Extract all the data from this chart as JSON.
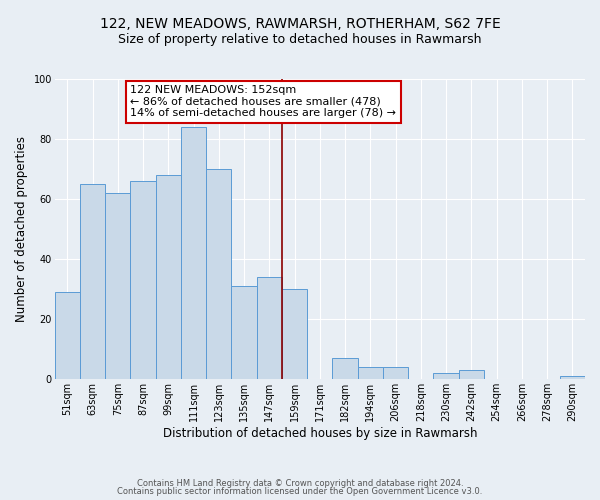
{
  "title": "122, NEW MEADOWS, RAWMARSH, ROTHERHAM, S62 7FE",
  "subtitle": "Size of property relative to detached houses in Rawmarsh",
  "xlabel": "Distribution of detached houses by size in Rawmarsh",
  "ylabel": "Number of detached properties",
  "bar_labels": [
    "51sqm",
    "63sqm",
    "75sqm",
    "87sqm",
    "99sqm",
    "111sqm",
    "123sqm",
    "135sqm",
    "147sqm",
    "159sqm",
    "171sqm",
    "182sqm",
    "194sqm",
    "206sqm",
    "218sqm",
    "230sqm",
    "242sqm",
    "254sqm",
    "266sqm",
    "278sqm",
    "290sqm"
  ],
  "bar_values": [
    29,
    65,
    62,
    66,
    68,
    84,
    70,
    31,
    34,
    30,
    0,
    7,
    4,
    4,
    0,
    2,
    3,
    0,
    0,
    0,
    1
  ],
  "bar_color": "#c9d9e8",
  "bar_edge_color": "#5b9bd5",
  "vline_x": 8.5,
  "vline_color": "#8b0000",
  "annotation_title": "122 NEW MEADOWS: 152sqm",
  "annotation_line1": "← 86% of detached houses are smaller (478)",
  "annotation_line2": "14% of semi-detached houses are larger (78) →",
  "annotation_box_color": "#ffffff",
  "annotation_box_edge": "#cc0000",
  "ylim": [
    0,
    100
  ],
  "yticks": [
    0,
    20,
    40,
    60,
    80,
    100
  ],
  "background_color": "#e8eef4",
  "footer1": "Contains HM Land Registry data © Crown copyright and database right 2024.",
  "footer2": "Contains public sector information licensed under the Open Government Licence v3.0.",
  "title_fontsize": 10,
  "subtitle_fontsize": 9,
  "annotation_fontsize": 8,
  "axis_label_fontsize": 8.5,
  "tick_fontsize": 7,
  "footer_fontsize": 6
}
